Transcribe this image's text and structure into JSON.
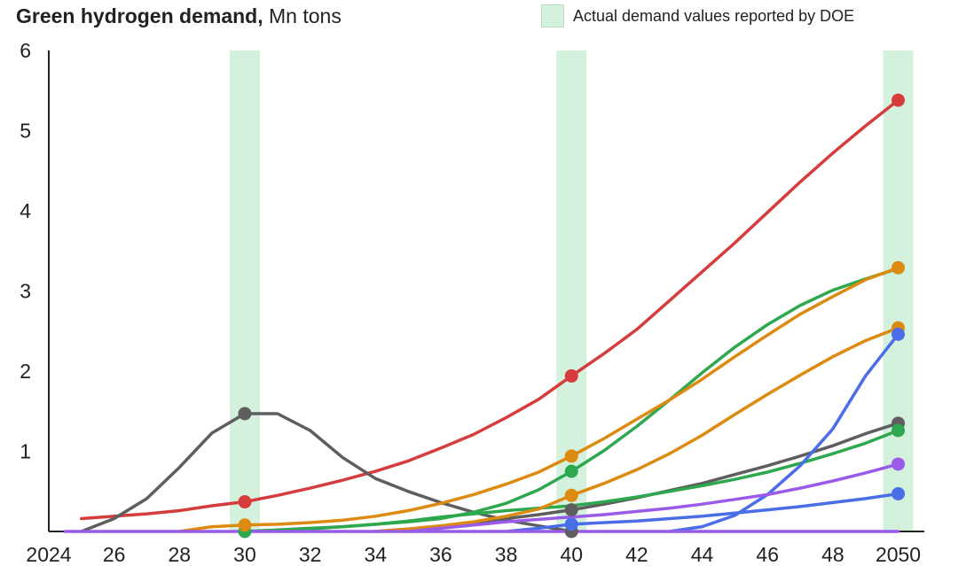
{
  "header": {
    "title_bold": "Green hydrogen demand",
    "title_sep": ",",
    "title_unit": "Mn tons",
    "legend_label": "Actual demand values reported by DOE"
  },
  "colors": {
    "band": "#d4f1de",
    "red": "#d63c3c",
    "green": "#2ea84f",
    "orange": "#dd8a10",
    "blue": "#4a6ee8",
    "purple": "#9a5be8",
    "gray": "#5e5e5e",
    "axis": "#222222"
  },
  "chart_data": {
    "type": "line",
    "title": "Green hydrogen demand, Mn tons",
    "xlabel": "",
    "ylabel": "",
    "xlim": [
      2024,
      2050.8
    ],
    "ylim": [
      0,
      6
    ],
    "grid": false,
    "x_ticks": [
      {
        "value": 2024,
        "label": "2024"
      },
      {
        "value": 2026,
        "label": "26"
      },
      {
        "value": 2028,
        "label": "28"
      },
      {
        "value": 2030,
        "label": "30"
      },
      {
        "value": 2032,
        "label": "32"
      },
      {
        "value": 2034,
        "label": "34"
      },
      {
        "value": 2036,
        "label": "36"
      },
      {
        "value": 2038,
        "label": "38"
      },
      {
        "value": 2040,
        "label": "40"
      },
      {
        "value": 2042,
        "label": "42"
      },
      {
        "value": 2044,
        "label": "44"
      },
      {
        "value": 2046,
        "label": "46"
      },
      {
        "value": 2048,
        "label": "48"
      },
      {
        "value": 2050,
        "label": "2050"
      }
    ],
    "y_ticks": [
      {
        "value": 1,
        "label": "1"
      },
      {
        "value": 2,
        "label": "2"
      },
      {
        "value": 3,
        "label": "3"
      },
      {
        "value": 4,
        "label": "4"
      },
      {
        "value": 5,
        "label": "5"
      },
      {
        "value": 6,
        "label": "6"
      }
    ],
    "highlight_years": [
      2030,
      2040,
      2050
    ],
    "highlight_label": "Actual demand values reported by DOE",
    "series": [
      {
        "color": "#d63c3c",
        "points": [
          [
            2025,
            0.16
          ],
          [
            2026,
            0.19
          ],
          [
            2027,
            0.22
          ],
          [
            2028,
            0.26
          ],
          [
            2029,
            0.32
          ],
          [
            2030,
            0.37
          ],
          [
            2031,
            0.45
          ],
          [
            2032,
            0.54
          ],
          [
            2033,
            0.64
          ],
          [
            2034,
            0.75
          ],
          [
            2035,
            0.88
          ],
          [
            2036,
            1.04
          ],
          [
            2037,
            1.21
          ],
          [
            2038,
            1.42
          ],
          [
            2039,
            1.65
          ],
          [
            2040,
            1.94
          ],
          [
            2041,
            2.22
          ],
          [
            2042,
            2.52
          ],
          [
            2043,
            2.88
          ],
          [
            2044,
            3.24
          ],
          [
            2045,
            3.6
          ],
          [
            2046,
            3.98
          ],
          [
            2047,
            4.36
          ],
          [
            2048,
            4.72
          ],
          [
            2049,
            5.06
          ],
          [
            2050,
            5.38
          ]
        ],
        "markers": [
          2030,
          2040,
          2050
        ]
      },
      {
        "color": "#5e5e5e",
        "points": [
          [
            2025,
            0.0
          ],
          [
            2026,
            0.16
          ],
          [
            2027,
            0.41
          ],
          [
            2028,
            0.8
          ],
          [
            2029,
            1.23
          ],
          [
            2030,
            1.47
          ],
          [
            2031,
            1.47
          ],
          [
            2032,
            1.26
          ],
          [
            2033,
            0.92
          ],
          [
            2034,
            0.66
          ],
          [
            2035,
            0.5
          ],
          [
            2036,
            0.36
          ],
          [
            2037,
            0.24
          ],
          [
            2038,
            0.14
          ],
          [
            2039,
            0.07
          ],
          [
            2040,
            0.0
          ]
        ],
        "markers": [
          2030,
          2040
        ]
      },
      {
        "color": "#5e5e5e",
        "points": [
          [
            2034,
            0.0
          ],
          [
            2035,
            0.03
          ],
          [
            2036,
            0.07
          ],
          [
            2037,
            0.11
          ],
          [
            2038,
            0.16
          ],
          [
            2039,
            0.21
          ],
          [
            2040,
            0.27
          ],
          [
            2041,
            0.34
          ],
          [
            2042,
            0.42
          ],
          [
            2043,
            0.51
          ],
          [
            2044,
            0.6
          ],
          [
            2045,
            0.71
          ],
          [
            2046,
            0.82
          ],
          [
            2047,
            0.94
          ],
          [
            2048,
            1.07
          ],
          [
            2049,
            1.22
          ],
          [
            2050,
            1.35
          ]
        ],
        "markers": [
          2040,
          2050
        ]
      },
      {
        "color": "#2ea84f",
        "points": [
          [
            2030,
            0.0
          ],
          [
            2031,
            0.02
          ],
          [
            2032,
            0.04
          ],
          [
            2033,
            0.06
          ],
          [
            2034,
            0.09
          ],
          [
            2035,
            0.12
          ],
          [
            2036,
            0.16
          ],
          [
            2037,
            0.24
          ],
          [
            2038,
            0.35
          ],
          [
            2039,
            0.52
          ],
          [
            2040,
            0.75
          ],
          [
            2041,
            1.01
          ],
          [
            2042,
            1.31
          ],
          [
            2043,
            1.64
          ],
          [
            2044,
            1.98
          ],
          [
            2045,
            2.3
          ],
          [
            2046,
            2.58
          ],
          [
            2047,
            2.82
          ],
          [
            2048,
            3.01
          ],
          [
            2049,
            3.15
          ],
          [
            2050,
            3.28
          ]
        ],
        "markers": [
          2030,
          2040
        ]
      },
      {
        "color": "#2ea84f",
        "points": [
          [
            2032,
            0.03
          ],
          [
            2033,
            0.06
          ],
          [
            2034,
            0.09
          ],
          [
            2035,
            0.13
          ],
          [
            2036,
            0.18
          ],
          [
            2037,
            0.22
          ],
          [
            2038,
            0.26
          ],
          [
            2039,
            0.29
          ],
          [
            2040,
            0.32
          ],
          [
            2041,
            0.37
          ],
          [
            2042,
            0.43
          ],
          [
            2043,
            0.5
          ],
          [
            2044,
            0.57
          ],
          [
            2045,
            0.65
          ],
          [
            2046,
            0.74
          ],
          [
            2047,
            0.85
          ],
          [
            2048,
            0.97
          ],
          [
            2049,
            1.1
          ],
          [
            2050,
            1.26
          ]
        ],
        "markers": [
          2050
        ]
      },
      {
        "color": "#dd8a10",
        "points": [
          [
            2028,
            0.0
          ],
          [
            2029,
            0.06
          ],
          [
            2030,
            0.08
          ],
          [
            2031,
            0.09
          ],
          [
            2032,
            0.11
          ],
          [
            2033,
            0.14
          ],
          [
            2034,
            0.19
          ],
          [
            2035,
            0.26
          ],
          [
            2036,
            0.35
          ],
          [
            2037,
            0.46
          ],
          [
            2038,
            0.59
          ],
          [
            2039,
            0.74
          ],
          [
            2040,
            0.94
          ],
          [
            2041,
            1.16
          ],
          [
            2042,
            1.4
          ],
          [
            2043,
            1.64
          ],
          [
            2044,
            1.9
          ],
          [
            2045,
            2.18
          ],
          [
            2046,
            2.45
          ],
          [
            2047,
            2.71
          ],
          [
            2048,
            2.93
          ],
          [
            2049,
            3.14
          ],
          [
            2050,
            3.29
          ]
        ],
        "markers": [
          2030,
          2040,
          2050
        ]
      },
      {
        "color": "#dd8a10",
        "points": [
          [
            2034,
            0.0
          ],
          [
            2035,
            0.03
          ],
          [
            2036,
            0.07
          ],
          [
            2037,
            0.12
          ],
          [
            2038,
            0.19
          ],
          [
            2039,
            0.28
          ],
          [
            2040,
            0.45
          ],
          [
            2041,
            0.6
          ],
          [
            2042,
            0.77
          ],
          [
            2043,
            0.97
          ],
          [
            2044,
            1.2
          ],
          [
            2045,
            1.46
          ],
          [
            2046,
            1.71
          ],
          [
            2047,
            1.95
          ],
          [
            2048,
            2.18
          ],
          [
            2049,
            2.38
          ],
          [
            2050,
            2.54
          ]
        ],
        "markers": [
          2040,
          2050
        ]
      },
      {
        "color": "#4a6ee8",
        "points": [
          [
            2043,
            0.0
          ],
          [
            2044,
            0.06
          ],
          [
            2045,
            0.2
          ],
          [
            2046,
            0.46
          ],
          [
            2047,
            0.82
          ],
          [
            2048,
            1.28
          ],
          [
            2049,
            1.94
          ],
          [
            2050,
            2.46
          ]
        ],
        "markers": [
          2050
        ]
      },
      {
        "color": "#4a6ee8",
        "points": [
          [
            2038,
            0.0
          ],
          [
            2039,
            0.04
          ],
          [
            2040,
            0.09
          ],
          [
            2041,
            0.11
          ],
          [
            2042,
            0.13
          ],
          [
            2043,
            0.16
          ],
          [
            2044,
            0.19
          ],
          [
            2045,
            0.23
          ],
          [
            2046,
            0.27
          ],
          [
            2047,
            0.31
          ],
          [
            2048,
            0.36
          ],
          [
            2049,
            0.41
          ],
          [
            2050,
            0.47
          ]
        ],
        "markers": [
          2040,
          2050
        ]
      },
      {
        "color": "#9a5be8",
        "points": [
          [
            2035,
            0.0
          ],
          [
            2036,
            0.04
          ],
          [
            2037,
            0.08
          ],
          [
            2038,
            0.12
          ],
          [
            2039,
            0.15
          ],
          [
            2040,
            0.18
          ],
          [
            2041,
            0.21
          ],
          [
            2042,
            0.25
          ],
          [
            2043,
            0.29
          ],
          [
            2044,
            0.34
          ],
          [
            2045,
            0.4
          ],
          [
            2046,
            0.46
          ],
          [
            2047,
            0.54
          ],
          [
            2048,
            0.63
          ],
          [
            2049,
            0.73
          ],
          [
            2050,
            0.84
          ]
        ],
        "markers": [
          2050
        ]
      },
      {
        "color": "#9a5be8",
        "points": [
          [
            2024.5,
            0.0
          ],
          [
            2050,
            0.0
          ]
        ],
        "markers": []
      }
    ]
  }
}
